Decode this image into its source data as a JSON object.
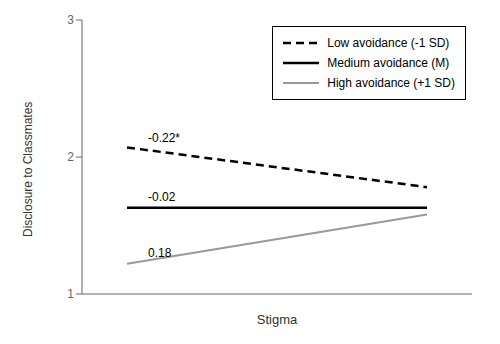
{
  "chart_data": {
    "type": "line",
    "x": [
      0,
      1
    ],
    "series": [
      {
        "name": "Low avoidance (-1 SD)",
        "color": "#000000",
        "line_style": "dashed",
        "values": [
          2.07,
          1.78
        ]
      },
      {
        "name": "Medium avoidance (M)",
        "color": "#000000",
        "line_style": "solid",
        "values": [
          1.63,
          1.63
        ]
      },
      {
        "name": "High avoidance (+1 SD)",
        "color": "#999999",
        "line_style": "solid",
        "values": [
          1.22,
          1.58
        ]
      }
    ],
    "annotations": [
      {
        "text": "-0.22*",
        "x": 0.07,
        "y": 2.09
      },
      {
        "text": "-0.02",
        "x": 0.07,
        "y": 1.655
      },
      {
        "text": "0.18",
        "x": 0.07,
        "y": 1.245
      }
    ],
    "xlabel": "Stigma",
    "ylabel": "Disclosure to Classmates",
    "xlim": [
      -0.15,
      1.15
    ],
    "xticks": [],
    "ylim": [
      1,
      3
    ],
    "yticks": [
      1,
      2,
      3
    ],
    "legend": "upper right",
    "tick_labels": "y",
    "grid": false
  }
}
